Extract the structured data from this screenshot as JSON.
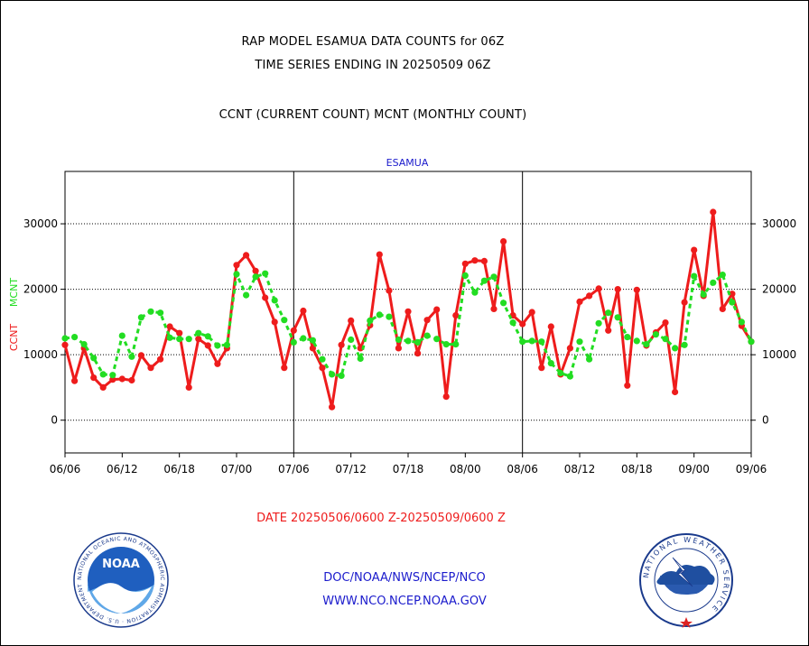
{
  "header": {
    "title_line1": "RAP MODEL ESAMUA DATA COUNTS for 06Z",
    "title_line2": "TIME SERIES ENDING IN 20250509 06Z",
    "subtitle": "CCNT (CURRENT COUNT) MCNT (MONTHLY COUNT)"
  },
  "footer": {
    "org_path": "DOC/NOAA/NWS/NCEP/NCO",
    "website": "WWW.NCO.NCEP.NOAA.GOV"
  },
  "logos": {
    "left": {
      "name": "NOAA",
      "ring_text": "NATIONAL OCEANIC AND ATMOSPHERIC ADMINISTRATION · U.S. DEPARTMENT OF COMMERCE"
    },
    "right": {
      "ring_text": "NATIONAL WEATHER SERVICE"
    }
  },
  "colors": {
    "ccnt": "#ee1c1c",
    "mcnt": "#22dd22",
    "panel_title": "#1a1acc",
    "date_range": "#ee1c1c",
    "footer_text": "#1a1acc"
  },
  "chart_data": {
    "type": "line",
    "title": "ESAMUA",
    "xlabel": "DATE 20250506/0600 Z-20250509/0600 Z",
    "ylabel_series": [
      "CCNT",
      "MCNT"
    ],
    "ylim": [
      -5000,
      38000
    ],
    "yticks": [
      0,
      10000,
      20000,
      30000
    ],
    "ytick_labels": [
      "0",
      "10000",
      "20000",
      "30000"
    ],
    "xticks": [
      "06/06",
      "06/12",
      "06/18",
      "07/00",
      "07/06",
      "07/12",
      "07/18",
      "08/00",
      "08/06",
      "08/12",
      "08/18",
      "09/00",
      "09/06"
    ],
    "xlim_hours": [
      0,
      72
    ],
    "hours_per_point": 1,
    "panel_dividers_hours": [
      24,
      48
    ],
    "grid": "dotted horizontal at y ticks",
    "series": [
      {
        "name": "CCNT",
        "color": "#ee1c1c",
        "style": "solid",
        "values": [
          11500,
          6000,
          11000,
          6500,
          5000,
          6200,
          6300,
          6100,
          9900,
          8000,
          9300,
          14300,
          13300,
          5000,
          12400,
          11400,
          8600,
          11000,
          23700,
          25200,
          22800,
          18700,
          15000,
          8000,
          13700,
          16700,
          11000,
          8000,
          2000,
          11500,
          15200,
          11000,
          14500,
          25300,
          19800,
          11000,
          16600,
          10200,
          15300,
          16900,
          3600,
          16000,
          23900,
          24400,
          24300,
          17000,
          27300,
          16000,
          14700,
          16500,
          8000,
          14300,
          7000,
          11000,
          18100,
          19000,
          20100,
          13700,
          20000,
          5300,
          19900,
          11400,
          13400,
          14900,
          4300,
          18000,
          26000,
          19000,
          31800,
          17000,
          19300,
          14400,
          12000
        ]
      },
      {
        "name": "MCNT",
        "color": "#22dd22",
        "style": "dashed",
        "values": [
          12500,
          12700,
          11600,
          9500,
          7000,
          6900,
          12900,
          9700,
          15700,
          16600,
          16400,
          12600,
          12400,
          12400,
          13300,
          12800,
          11400,
          11500,
          22300,
          19100,
          21900,
          22400,
          18300,
          15300,
          11900,
          12500,
          12200,
          9300,
          7000,
          6800,
          12300,
          9400,
          15200,
          16100,
          15800,
          12300,
          12100,
          11900,
          12900,
          12400,
          11600,
          11600,
          22100,
          19500,
          21300,
          21900,
          17900,
          14900,
          12000,
          12100,
          12000,
          8700,
          7200,
          6700,
          12000,
          9300,
          14800,
          16400,
          15700,
          12700,
          12100,
          11600,
          13100,
          12400,
          11000,
          11500,
          22000,
          19200,
          21000,
          22200,
          18000,
          15000,
          12000
        ]
      }
    ]
  }
}
